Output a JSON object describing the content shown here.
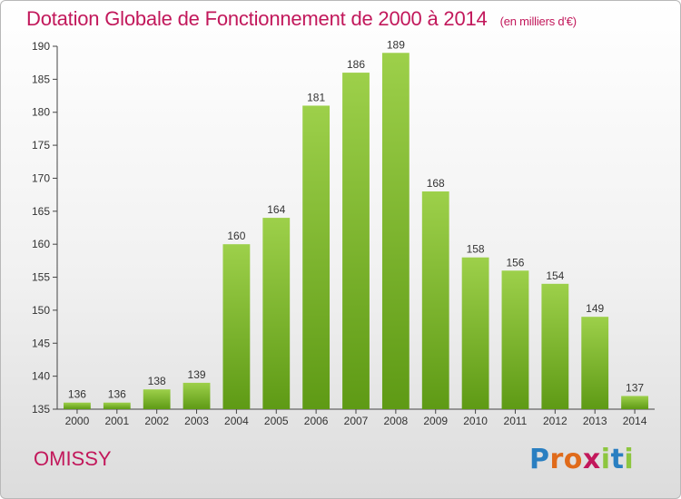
{
  "title": "Dotation Globale de Fonctionnement de 2000 à 2014",
  "title_unit": "(en milliers d'€)",
  "commune": "OMISSY",
  "brand": {
    "letters": [
      {
        "ch": "P",
        "color": "#2a7fc1"
      },
      {
        "ch": "r",
        "color": "#e06b1b"
      },
      {
        "ch": "o",
        "color": "#e06b1b"
      },
      {
        "ch": "x",
        "color": "#c2185b"
      },
      {
        "ch": "i",
        "color": "#8dc63f"
      },
      {
        "ch": "t",
        "color": "#2a7fc1"
      },
      {
        "ch": "i",
        "color": "#8dc63f"
      }
    ]
  },
  "colors": {
    "title": "#c2185b",
    "bar_top": "#9dd04a",
    "bar_bottom": "#5e9a15",
    "axis": "#444444"
  },
  "chart_data": {
    "type": "bar",
    "categories": [
      "2000",
      "2001",
      "2002",
      "2003",
      "2004",
      "2005",
      "2006",
      "2007",
      "2008",
      "2009",
      "2010",
      "2011",
      "2012",
      "2013",
      "2014"
    ],
    "values": [
      136,
      136,
      138,
      139,
      160,
      164,
      181,
      186,
      189,
      168,
      158,
      156,
      154,
      149,
      137
    ],
    "ylim": [
      135,
      190
    ],
    "yticks": [
      135,
      140,
      145,
      150,
      155,
      160,
      165,
      170,
      175,
      180,
      185,
      190
    ],
    "grid": false,
    "legend": "none"
  }
}
